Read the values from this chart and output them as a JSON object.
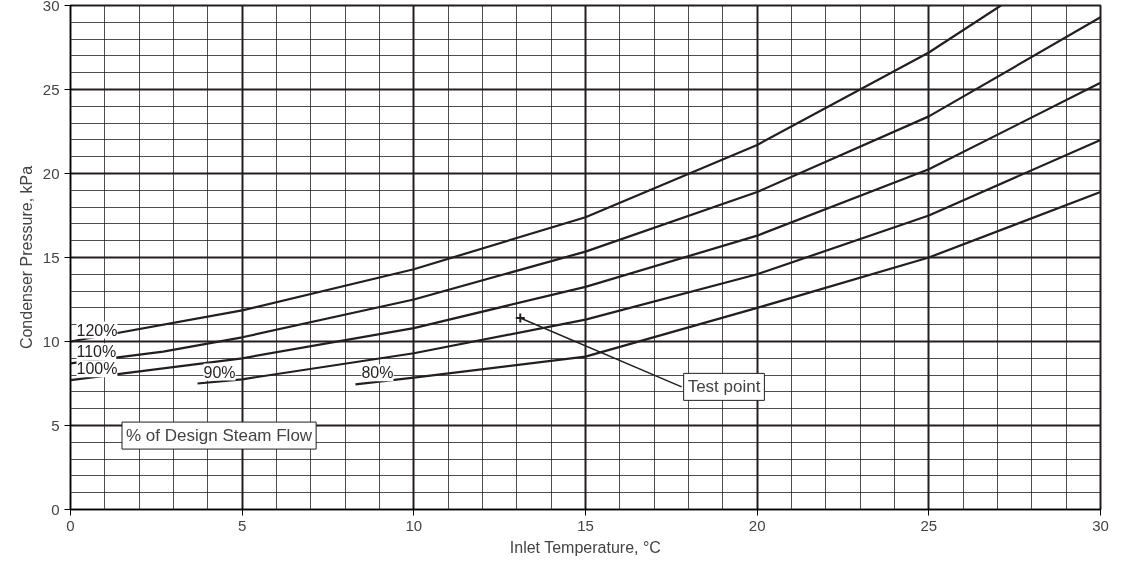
{
  "chart_data": {
    "type": "line",
    "xlabel": "Inlet Temperature, °C",
    "ylabel": "Condenser Pressure, kPa",
    "xlim": [
      0,
      30
    ],
    "ylim": [
      0,
      30
    ],
    "xticks": [
      0,
      5,
      10,
      15,
      20,
      25,
      30
    ],
    "yticks": [
      0,
      5,
      10,
      15,
      20,
      25,
      30
    ],
    "grid": true,
    "line_style": "solid",
    "marker": "none",
    "series": [
      {
        "name": "120%",
        "color": "#231f20",
        "x": [
          0,
          5,
          10,
          15,
          20,
          25,
          27.1
        ],
        "values": [
          10.0,
          11.85,
          14.3,
          17.4,
          21.7,
          27.2,
          30.0
        ]
      },
      {
        "name": "110%",
        "color": "#231f20",
        "x": [
          0,
          2.7,
          5,
          10,
          15,
          20,
          25,
          30
        ],
        "values": [
          8.7,
          9.4,
          10.25,
          12.5,
          15.35,
          18.9,
          23.4,
          29.3
        ]
      },
      {
        "name": "100%",
        "color": "#231f20",
        "x": [
          0,
          5,
          10,
          15,
          20,
          25,
          30
        ],
        "values": [
          7.7,
          9.0,
          10.8,
          13.25,
          16.3,
          20.25,
          25.4
        ]
      },
      {
        "name": "90%",
        "color": "#231f20",
        "x": [
          3.7,
          5,
          10,
          15,
          20,
          25,
          30
        ],
        "values": [
          7.5,
          7.75,
          9.3,
          11.3,
          14.0,
          17.5,
          22.0
        ]
      },
      {
        "name": "80%",
        "color": "#231f20",
        "x": [
          8.3,
          10,
          15,
          20,
          25,
          30
        ],
        "values": [
          7.45,
          7.85,
          9.1,
          12.0,
          15.0,
          18.9
        ]
      },
      {
        "type": "scatter",
        "marker": "cross",
        "color": "#231f20",
        "x": [
          13.1
        ],
        "values": [
          11.4
        ]
      }
    ],
    "annotations": [
      {
        "text": "Test point",
        "x": 13.1,
        "y": 11.4
      },
      "% of Design Steam Flow"
    ]
  }
}
